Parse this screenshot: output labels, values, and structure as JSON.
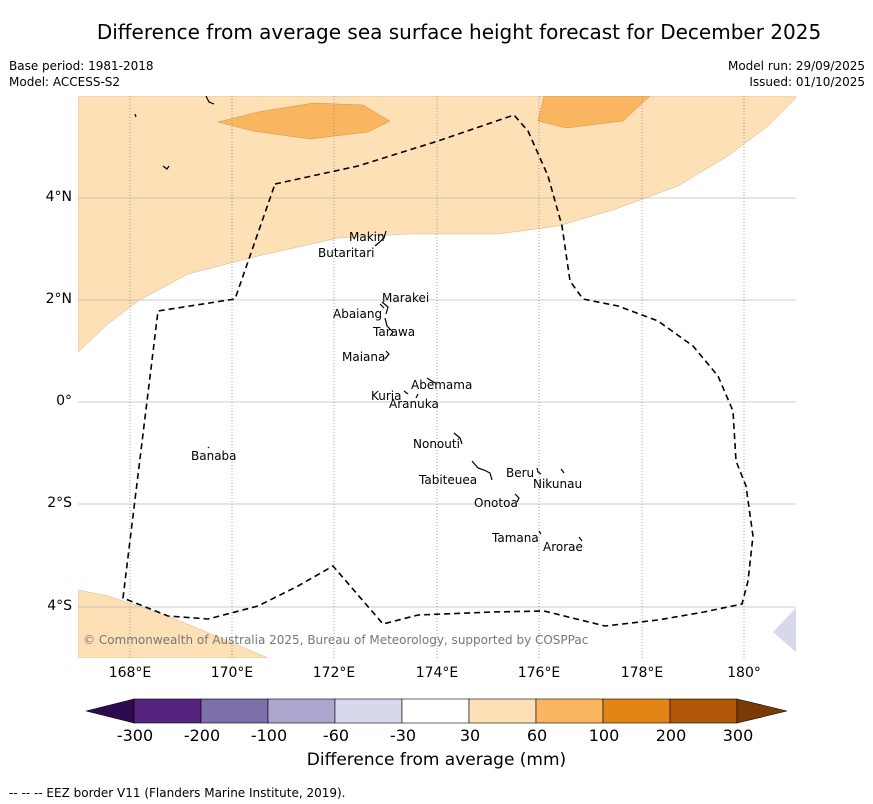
{
  "title": "Difference from average sea surface height forecast for December 2025",
  "meta_left": {
    "base_period": "Base period: 1981-2018",
    "model": "Model: ACCESS-S2"
  },
  "meta_right": {
    "model_run": "Model run: 29/09/2025",
    "issued": "Issued: 01/10/2025"
  },
  "copyright": "© Commonwealth of Australia 2025, Bureau of Meteorology, supported by COSPPac",
  "x_ticks": [
    "168°E",
    "170°E",
    "172°E",
    "174°E",
    "176°E",
    "178°E",
    "180°"
  ],
  "y_ticks": [
    "4°N",
    "2°N",
    "0°",
    "2°S",
    "4°S"
  ],
  "places": [
    {
      "name": "Makin"
    },
    {
      "name": "Butaritari"
    },
    {
      "name": "Marakei"
    },
    {
      "name": "Abaiang"
    },
    {
      "name": "Tarawa"
    },
    {
      "name": "Maiana"
    },
    {
      "name": "Abemama"
    },
    {
      "name": "Kuria"
    },
    {
      "name": "Aranuka"
    },
    {
      "name": "Nonouti"
    },
    {
      "name": "Banaba"
    },
    {
      "name": "Tabiteuea"
    },
    {
      "name": "Beru"
    },
    {
      "name": "Nikunau"
    },
    {
      "name": "Onotoa"
    },
    {
      "name": "Tamana"
    },
    {
      "name": "Arorae"
    }
  ],
  "colorbar": {
    "ticks": [
      "-300",
      "-200",
      "-100",
      "-60",
      "-30",
      "30",
      "60",
      "100",
      "200",
      "300"
    ],
    "colors": [
      "#2e0a4f",
      "#54247f",
      "#7d6faa",
      "#aca6ce",
      "#d8d8ec",
      "#ffffff",
      "#fde0b5",
      "#f9b55f",
      "#e38516",
      "#b05708",
      "#7a3a05"
    ],
    "label": "Difference from average (mm)"
  },
  "eez_note": "--  --  -- EEZ border V11 (Flanders Marine Institute, 2019).",
  "legend_colors": {
    "light_orange": "#fde0b5",
    "mid_orange": "#f9b55f",
    "light_lavender": "#d8d8ec"
  }
}
